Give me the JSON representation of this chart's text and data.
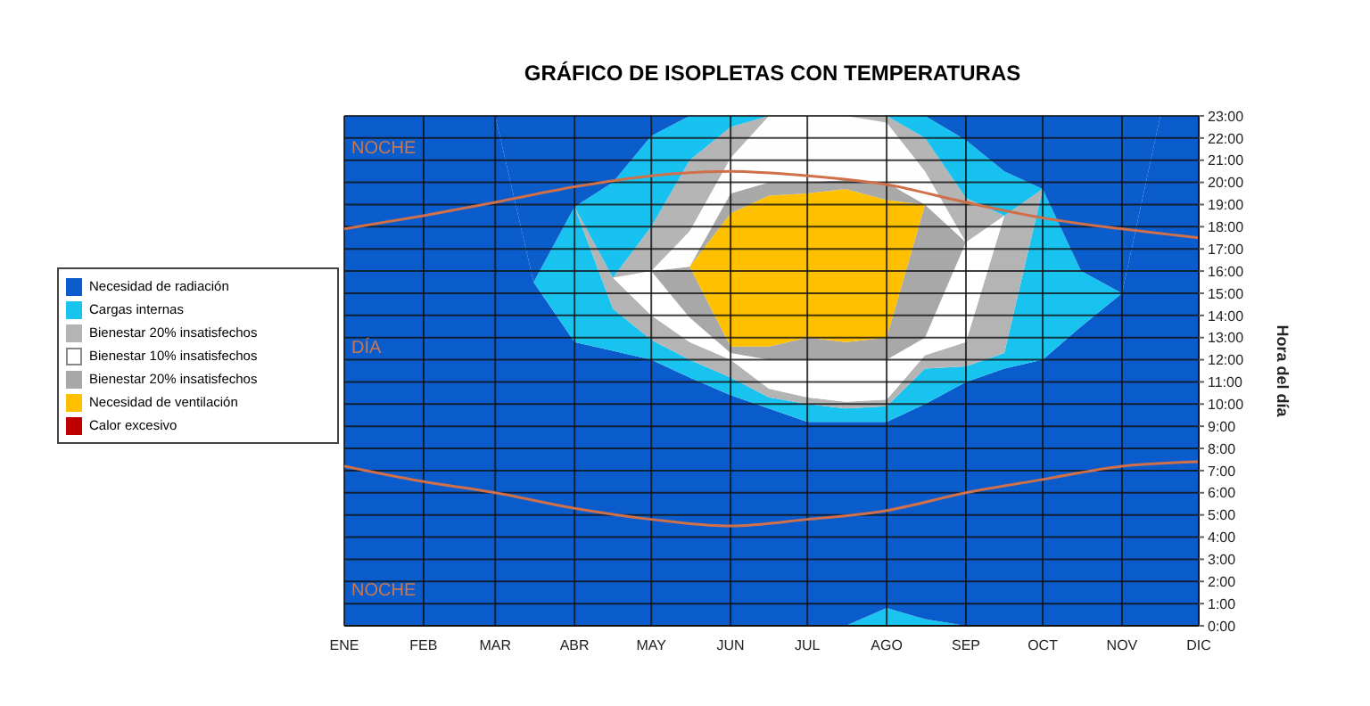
{
  "chart_data": {
    "type": "area",
    "title": "GRÁFICO DE ISOPLETAS CON TEMPERATURAS",
    "y2label": "Hora del día",
    "stacked": true,
    "grid": true,
    "legend": "left",
    "x": [
      "--01-01",
      "--01-16",
      "--02-01",
      "--02-15",
      "--03-01",
      "--03-16",
      "--04-01",
      "--04-16",
      "--05-01",
      "--05-16",
      "--06-01",
      "--06-16",
      "--07-01",
      "--07-16",
      "--08-01",
      "--08-16",
      "--09-01",
      "--09-16",
      "--10-01",
      "--10-16",
      "--11-01",
      "--11-16",
      "--12-01"
    ],
    "xlim": [
      "--01-01",
      "--12-01"
    ],
    "xticks": [
      {
        "value": "--01-01",
        "label": "ENE"
      },
      {
        "value": "--02-01",
        "label": "FEB"
      },
      {
        "value": "--03-01",
        "label": "MAR"
      },
      {
        "value": "--04-01",
        "label": "ABR"
      },
      {
        "value": "--05-01",
        "label": "MAY"
      },
      {
        "value": "--06-01",
        "label": "JUN"
      },
      {
        "value": "--07-01",
        "label": "JUL"
      },
      {
        "value": "--08-01",
        "label": "AGO"
      },
      {
        "value": "--09-01",
        "label": "SEP"
      },
      {
        "value": "--10-01",
        "label": "OCT"
      },
      {
        "value": "--11-01",
        "label": "NOV"
      },
      {
        "value": "--12-01",
        "label": "DIC"
      }
    ],
    "y2lim": [
      0,
      23
    ],
    "y2ticks": [
      {
        "value": 0,
        "label": "0:00"
      },
      {
        "value": 1,
        "label": "1:00"
      },
      {
        "value": 2,
        "label": "2:00"
      },
      {
        "value": 3,
        "label": "3:00"
      },
      {
        "value": 4,
        "label": "4:00"
      },
      {
        "value": 5,
        "label": "5:00"
      },
      {
        "value": 6,
        "label": "6:00"
      },
      {
        "value": 7,
        "label": "7:00"
      },
      {
        "value": 8,
        "label": "8:00"
      },
      {
        "value": 9,
        "label": "9:00"
      },
      {
        "value": 10,
        "label": "10:00"
      },
      {
        "value": 11,
        "label": "11:00"
      },
      {
        "value": 12,
        "label": "12:00"
      },
      {
        "value": 13,
        "label": "13:00"
      },
      {
        "value": 14,
        "label": "14:00"
      },
      {
        "value": 15,
        "label": "15:00"
      },
      {
        "value": 16,
        "label": "16:00"
      },
      {
        "value": 17,
        "label": "17:00"
      },
      {
        "value": 18,
        "label": "18:00"
      },
      {
        "value": 19,
        "label": "19:00"
      },
      {
        "value": 20,
        "label": "20:00"
      },
      {
        "value": 21,
        "label": "21:00"
      },
      {
        "value": 22,
        "label": "22:00"
      },
      {
        "value": 23,
        "label": "23:00"
      }
    ],
    "annotations": [
      "NOCHE",
      "DÍA",
      "NOCHE"
    ],
    "series": [
      {
        "color": "#1ac4f0",
        "axis": "y2",
        "values": [
          null,
          null,
          null,
          null,
          null,
          null,
          null,
          null,
          null,
          null,
          null,
          null,
          null,
          0,
          0.8,
          0.3,
          0,
          null,
          null,
          null,
          null,
          null,
          null
        ]
      },
      {
        "name": "Necesidad de radiación",
        "color": "#0a5ccc",
        "axis": "y2",
        "values": [
          23,
          23,
          23,
          23,
          23,
          15.5,
          12.8,
          12.4,
          12.0,
          11.2,
          10.4,
          9.8,
          9.2,
          9.2,
          8.4,
          9.7,
          11.0,
          11.6,
          12.0,
          13.5,
          15,
          23,
          23
        ]
      },
      {
        "name": "Cargas internas",
        "color": "#19c3f0",
        "axis": "y2",
        "values": [
          null,
          null,
          null,
          null,
          null,
          0,
          6.1,
          1.9,
          0.9,
          0.8,
          0.8,
          0.5,
          0.8,
          0.6,
          0.7,
          1.6,
          0.7,
          0.7,
          7.7,
          2.5,
          0,
          null,
          null
        ]
      },
      {
        "name": "Bienestar 20% insatisfechos",
        "color": "#b4b4b4",
        "axis": "y2",
        "values": [
          null,
          null,
          null,
          null,
          null,
          null,
          0,
          1.4,
          1.1,
          0.8,
          0.8,
          0.4,
          0.3,
          0.3,
          0.3,
          0.6,
          1.1,
          6.2,
          0,
          null,
          null,
          null,
          null
        ]
      },
      {
        "name": "Bienestar 10% insatisfechos",
        "color": "#ffffff",
        "axis": "y2",
        "values": [
          null,
          null,
          null,
          null,
          null,
          null,
          null,
          0,
          2.0,
          1.1,
          0.3,
          1.3,
          1.7,
          1.9,
          1.8,
          0.8,
          4.5,
          0,
          null,
          null,
          null,
          null,
          null
        ]
      },
      {
        "name": "Bienestar 20% insatisfechos",
        "color": "#a8a8a8",
        "axis": "y2",
        "values": [
          null,
          null,
          null,
          null,
          null,
          null,
          null,
          null,
          0,
          2.3,
          0.3,
          0.6,
          1.0,
          0.8,
          1.0,
          6.0,
          0,
          null,
          null,
          null,
          null,
          null,
          null
        ]
      },
      {
        "name": "Necesidad de ventilación",
        "color": "#ffc000",
        "axis": "y2",
        "values": [
          null,
          null,
          null,
          null,
          null,
          null,
          null,
          null,
          null,
          0,
          6.0,
          6.8,
          6.5,
          6.9,
          6.2,
          0,
          null,
          null,
          null,
          null,
          null,
          null,
          null
        ]
      },
      {
        "color": "#a9a9a9",
        "axis": "y2",
        "values": [
          null,
          null,
          null,
          null,
          null,
          null,
          null,
          null,
          null,
          0,
          0.9,
          0.6,
          0.5,
          0.4,
          0.8,
          0,
          null,
          null,
          null,
          null,
          null,
          null,
          null
        ]
      },
      {
        "color": "#fefefe",
        "axis": "y2",
        "values": [
          null,
          null,
          null,
          null,
          null,
          null,
          null,
          null,
          0,
          1.6,
          1.6,
          3.0,
          3.0,
          2.9,
          2.7,
          1.5,
          0,
          null,
          null,
          null,
          null,
          null,
          null
        ]
      },
      {
        "color": "#b5b5b5",
        "axis": "y2",
        "values": [
          null,
          null,
          null,
          null,
          null,
          null,
          null,
          0,
          2.0,
          3.2,
          1.4,
          0,
          null,
          0,
          0.3,
          1.5,
          2.0,
          0,
          null,
          null,
          null,
          null,
          null
        ]
      },
      {
        "color": "#18c2f0",
        "axis": "y2",
        "values": [
          null,
          null,
          null,
          null,
          null,
          null,
          0,
          4.3,
          4.1,
          2.0,
          0.5,
          0,
          null,
          null,
          0,
          1.0,
          2.6,
          2.0,
          0,
          null,
          null,
          null,
          null
        ]
      },
      {
        "color": "#0b5dcc",
        "axis": "y2",
        "values": [
          null,
          null,
          null,
          null,
          0,
          7.5,
          4.1,
          3.0,
          0.9,
          0,
          null,
          null,
          null,
          null,
          null,
          0,
          1.1,
          2.5,
          3.3,
          7.0,
          8,
          0,
          null
        ]
      },
      {
        "name": "Calor excesivo",
        "color": "#c00000",
        "axis": "y2",
        "values": [
          null,
          null,
          null,
          null,
          null,
          null,
          null,
          null,
          null,
          null,
          null,
          null,
          null,
          null,
          null,
          null,
          null,
          null,
          null,
          null,
          null,
          null,
          null
        ]
      },
      {
        "type": "line",
        "color": "#d0704a",
        "axis": "y2",
        "x": [
          "--01-01",
          "--02-01",
          "--03-01",
          "--04-01",
          "--05-01",
          "--06-01",
          "--07-01",
          "--08-01",
          "--09-01",
          "--10-01",
          "--11-01",
          "--12-01"
        ],
        "values": [
          17.9,
          18.5,
          19.1,
          19.8,
          20.3,
          20.5,
          20.3,
          19.9,
          19.1,
          18.4,
          17.9,
          17.5
        ]
      },
      {
        "type": "line",
        "color": "#d0704a",
        "axis": "y2",
        "x": [
          "--01-01",
          "--02-01",
          "--03-01",
          "--04-01",
          "--05-01",
          "--06-01",
          "--07-01",
          "--08-01",
          "--09-01",
          "--10-01",
          "--11-01",
          "--12-01"
        ],
        "values": [
          7.2,
          6.5,
          6.0,
          5.3,
          4.8,
          4.5,
          4.8,
          5.2,
          6.0,
          6.6,
          7.2,
          7.4
        ]
      }
    ]
  }
}
